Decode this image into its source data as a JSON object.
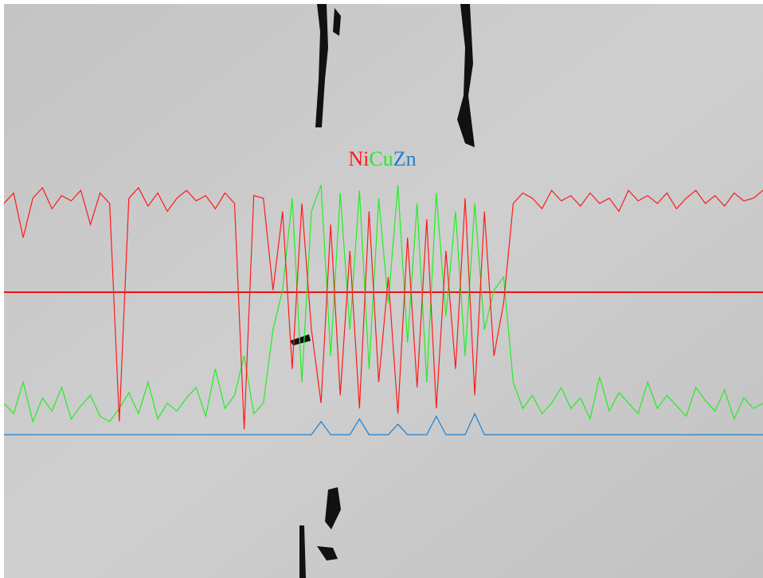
{
  "chart_data": {
    "type": "line",
    "series": [
      {
        "name": "Ni",
        "color": "#ff1a1a",
        "values": [
          88,
          92,
          75,
          90,
          94,
          86,
          91,
          89,
          93,
          80,
          92,
          88,
          5,
          90,
          94,
          87,
          92,
          85,
          90,
          93,
          89,
          91,
          86,
          92,
          88,
          2,
          91,
          90,
          55,
          85,
          25,
          88,
          40,
          12,
          80,
          15,
          70,
          10,
          85,
          20,
          60,
          8,
          75,
          18,
          82,
          10,
          70,
          25,
          90,
          15,
          85,
          30,
          50,
          88,
          92,
          90,
          86,
          93,
          89,
          91,
          87,
          92,
          88,
          90,
          85,
          93,
          89,
          91,
          88,
          92,
          86,
          90,
          93,
          88,
          91,
          87,
          92,
          89,
          90,
          93
        ]
      },
      {
        "name": "Cu",
        "color": "#22ee22",
        "values": [
          12,
          8,
          20,
          5,
          14,
          9,
          18,
          6,
          11,
          15,
          7,
          5,
          10,
          16,
          8,
          20,
          6,
          12,
          9,
          14,
          18,
          7,
          25,
          10,
          15,
          30,
          8,
          12,
          40,
          55,
          90,
          20,
          85,
          95,
          30,
          92,
          40,
          93,
          25,
          90,
          50,
          95,
          35,
          88,
          20,
          92,
          45,
          85,
          30,
          88,
          40,
          55,
          60,
          20,
          10,
          15,
          8,
          12,
          18,
          10,
          14,
          6,
          22,
          9,
          16,
          12,
          8,
          20,
          10,
          15,
          11,
          7,
          18,
          13,
          9,
          17,
          6,
          14,
          10,
          12
        ]
      },
      {
        "name": "Zn",
        "color": "#1e7fd0",
        "values": [
          0,
          0,
          0,
          0,
          0,
          0,
          0,
          0,
          0,
          0,
          0,
          0,
          0,
          0,
          0,
          0,
          0,
          0,
          0,
          0,
          0,
          0,
          0,
          0,
          0,
          0,
          0,
          0,
          0,
          0,
          0,
          0,
          0,
          5,
          0,
          0,
          0,
          6,
          0,
          0,
          0,
          4,
          0,
          0,
          0,
          7,
          0,
          0,
          0,
          8,
          0,
          0,
          0,
          0,
          0,
          0,
          0,
          0,
          0,
          0,
          0,
          0,
          0,
          0,
          0,
          0,
          0,
          0,
          0,
          0,
          0,
          0,
          0,
          0,
          0,
          0,
          0,
          0,
          0,
          0
        ]
      }
    ],
    "ylim": [
      0,
      100
    ]
  }
}
